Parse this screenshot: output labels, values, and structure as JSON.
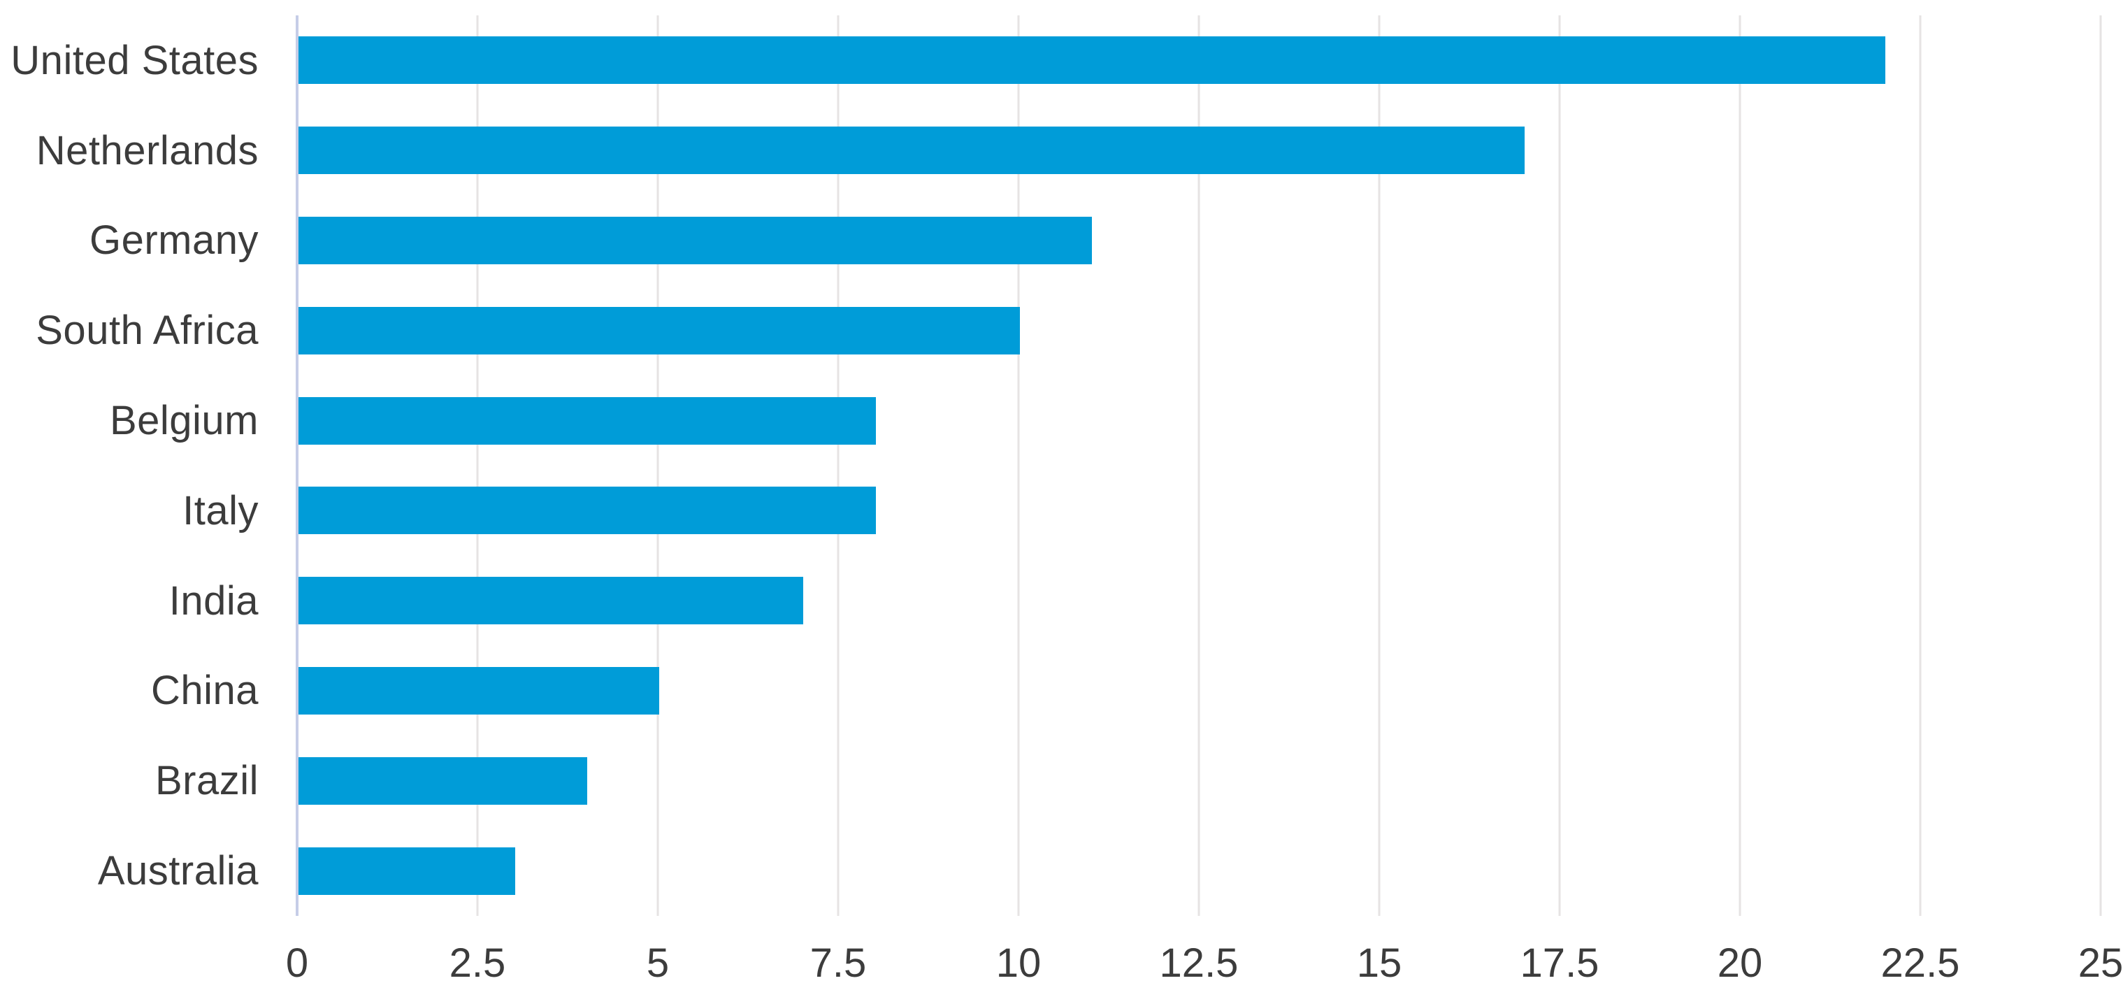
{
  "chart_data": {
    "type": "bar",
    "orientation": "horizontal",
    "title": "",
    "xlabel": "",
    "ylabel": "",
    "categories": [
      "United States",
      "Netherlands",
      "Germany",
      "South Africa",
      "Belgium",
      "Italy",
      "India",
      "China",
      "Brazil",
      "Australia"
    ],
    "values": [
      22,
      17,
      11,
      10,
      8,
      8,
      7,
      5,
      4,
      3
    ],
    "xlim": [
      0,
      25
    ],
    "x_ticks": [
      0,
      2.5,
      5,
      7.5,
      10,
      12.5,
      15,
      17.5,
      20,
      22.5,
      25
    ],
    "x_tick_labels": [
      "0",
      "2.5",
      "5",
      "7.5",
      "10",
      "12.5",
      "15",
      "17.5",
      "20",
      "22.5",
      "25"
    ],
    "grid": "vertical-gridlines-on",
    "legend": "none",
    "colors": {
      "bar": "#009cd8",
      "gridline": "#e6e3e3",
      "zero_axis_line": "#c6cde7",
      "label_text": "#3c3c3c",
      "background": "#ffffff"
    }
  }
}
